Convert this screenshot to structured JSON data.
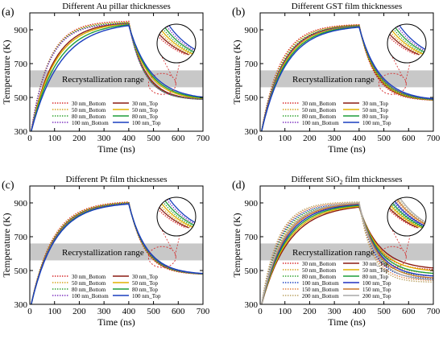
{
  "figure": {
    "panels": [
      "(a)",
      "(b)",
      "(c)",
      "(d)"
    ]
  },
  "chart_data": [
    {
      "panel": "(a)",
      "type": "line",
      "title": "Different Au pillar thicknesses",
      "xlabel": "Time (ns)",
      "ylabel": "Temperature (K)",
      "xlim": [
        0,
        700
      ],
      "ylim": [
        300,
        1000
      ],
      "xticks": [
        0,
        100,
        200,
        300,
        400,
        500,
        600,
        700
      ],
      "yticks": [
        300,
        500,
        700,
        900
      ],
      "band": {
        "label": "Recrystallization range",
        "y": [
          560,
          660
        ]
      },
      "grid": false,
      "legend_placement": "bottom-center",
      "series": [
        {
          "name": "30 nm_Bottom",
          "style": "dotted",
          "color": "#d62728",
          "peak": 950,
          "rise_k": 0.014,
          "end": 485,
          "decay_k": 0.016
        },
        {
          "name": "30 nm_Top",
          "style": "solid",
          "color": "#8c1c13",
          "peak": 940,
          "rise_k": 0.011,
          "end": 485,
          "decay_k": 0.015
        },
        {
          "name": "50 nm_Bottom",
          "style": "dotted",
          "color": "#d4a017",
          "peak": 945,
          "rise_k": 0.014,
          "end": 485,
          "decay_k": 0.016
        },
        {
          "name": "50 nm_Top",
          "style": "solid",
          "color": "#e0b000",
          "peak": 935,
          "rise_k": 0.0105,
          "end": 485,
          "decay_k": 0.013
        },
        {
          "name": "80 nm_Bottom",
          "style": "dotted",
          "color": "#2ca02c",
          "peak": 940,
          "rise_k": 0.014,
          "end": 485,
          "decay_k": 0.016
        },
        {
          "name": "80 nm_Top",
          "style": "solid",
          "color": "#1f9e3a",
          "peak": 930,
          "rise_k": 0.0095,
          "end": 485,
          "decay_k": 0.012
        },
        {
          "name": "100 nm_Bottom",
          "style": "dotted",
          "color": "#7b2fbe",
          "peak": 935,
          "rise_k": 0.014,
          "end": 485,
          "decay_k": 0.016
        },
        {
          "name": "100 nm_Top",
          "style": "solid",
          "color": "#1a3fbf",
          "peak": 925,
          "rise_k": 0.0085,
          "end": 485,
          "decay_k": 0.011
        }
      ]
    },
    {
      "panel": "(b)",
      "type": "line",
      "title": "Different GST film thicknesses",
      "xlabel": "Time (ns)",
      "ylabel": "Temperature (K)",
      "xlim": [
        0,
        700
      ],
      "ylim": [
        300,
        1000
      ],
      "xticks": [
        0,
        100,
        200,
        300,
        400,
        500,
        600,
        700
      ],
      "yticks": [
        300,
        500,
        700,
        900
      ],
      "band": {
        "label": "Recrystallization range",
        "y": [
          560,
          660
        ]
      },
      "grid": false,
      "legend_placement": "bottom-center",
      "series": [
        {
          "name": "30 nm_Bottom",
          "style": "dotted",
          "color": "#d62728",
          "peak": 930,
          "rise_k": 0.013,
          "end": 480,
          "decay_k": 0.016
        },
        {
          "name": "30 nm_Top",
          "style": "solid",
          "color": "#8c1c13",
          "peak": 925,
          "rise_k": 0.0115,
          "end": 480,
          "decay_k": 0.015
        },
        {
          "name": "50 nm_Bottom",
          "style": "dotted",
          "color": "#d4a017",
          "peak": 928,
          "rise_k": 0.0125,
          "end": 480,
          "decay_k": 0.015
        },
        {
          "name": "50 nm_Top",
          "style": "solid",
          "color": "#e0b000",
          "peak": 922,
          "rise_k": 0.011,
          "end": 480,
          "decay_k": 0.014
        },
        {
          "name": "80 nm_Bottom",
          "style": "dotted",
          "color": "#2ca02c",
          "peak": 925,
          "rise_k": 0.012,
          "end": 480,
          "decay_k": 0.014
        },
        {
          "name": "80 nm_Top",
          "style": "solid",
          "color": "#1f9e3a",
          "peak": 918,
          "rise_k": 0.0105,
          "end": 480,
          "decay_k": 0.013
        },
        {
          "name": "100 nm_Bottom",
          "style": "dotted",
          "color": "#7b2fbe",
          "peak": 922,
          "rise_k": 0.0115,
          "end": 480,
          "decay_k": 0.013
        },
        {
          "name": "100 nm_Top",
          "style": "solid",
          "color": "#1a3fbf",
          "peak": 915,
          "rise_k": 0.01,
          "end": 480,
          "decay_k": 0.012
        }
      ]
    },
    {
      "panel": "(c)",
      "type": "line",
      "title": "Different Pt film thicknesses",
      "xlabel": "Time (ns)",
      "ylabel": "Temperature (K)",
      "xlim": [
        0,
        700
      ],
      "ylim": [
        300,
        1000
      ],
      "xticks": [
        0,
        100,
        200,
        300,
        400,
        500,
        600,
        700
      ],
      "yticks": [
        300,
        500,
        700,
        900
      ],
      "band": {
        "label": "Recrystallization range",
        "y": [
          560,
          660
        ]
      },
      "grid": false,
      "legend_placement": "bottom-center",
      "series": [
        {
          "name": "30 nm_Bottom",
          "style": "dotted",
          "color": "#d62728",
          "peak": 905,
          "rise_k": 0.0115,
          "end": 475,
          "decay_k": 0.016
        },
        {
          "name": "30 nm_Top",
          "style": "solid",
          "color": "#8c1c13",
          "peak": 900,
          "rise_k": 0.011,
          "end": 475,
          "decay_k": 0.015
        },
        {
          "name": "50 nm_Bottom",
          "style": "dotted",
          "color": "#d4a017",
          "peak": 903,
          "rise_k": 0.0113,
          "end": 475,
          "decay_k": 0.0155
        },
        {
          "name": "50 nm_Top",
          "style": "solid",
          "color": "#e0b000",
          "peak": 898,
          "rise_k": 0.0108,
          "end": 475,
          "decay_k": 0.0145
        },
        {
          "name": "80 nm_Bottom",
          "style": "dotted",
          "color": "#2ca02c",
          "peak": 900,
          "rise_k": 0.011,
          "end": 475,
          "decay_k": 0.015
        },
        {
          "name": "80 nm_Top",
          "style": "solid",
          "color": "#1f9e3a",
          "peak": 895,
          "rise_k": 0.0105,
          "end": 475,
          "decay_k": 0.014
        },
        {
          "name": "100 nm_Bottom",
          "style": "dotted",
          "color": "#7b2fbe",
          "peak": 898,
          "rise_k": 0.0108,
          "end": 475,
          "decay_k": 0.0145
        },
        {
          "name": "100 nm_Top",
          "style": "solid",
          "color": "#1a3fbf",
          "peak": 893,
          "rise_k": 0.0103,
          "end": 475,
          "decay_k": 0.0135
        }
      ]
    },
    {
      "panel": "(d)",
      "type": "line",
      "title": "Different SiO",
      "title_subscript": "2",
      "title_suffix": " film thicknesses",
      "xlabel": "Time (ns)",
      "ylabel": "Temperature (K)",
      "xlim": [
        0,
        700
      ],
      "ylim": [
        300,
        1000
      ],
      "xticks": [
        0,
        100,
        200,
        300,
        400,
        500,
        600,
        700
      ],
      "yticks": [
        300,
        500,
        700,
        900
      ],
      "band": {
        "label": "Recrystallization range",
        "y": [
          560,
          660
        ]
      },
      "grid": false,
      "legend_placement": "bottom-center",
      "series": [
        {
          "name": "30 nm_Bottom",
          "style": "dotted",
          "color": "#d62728",
          "peak": 880,
          "rise_k": 0.0125,
          "end": 500,
          "decay_k": 0.014
        },
        {
          "name": "30 nm_Top",
          "style": "solid",
          "color": "#8c1c13",
          "peak": 875,
          "rise_k": 0.009,
          "end": 505,
          "decay_k": 0.012
        },
        {
          "name": "50 nm_Bottom",
          "style": "dotted",
          "color": "#d4a017",
          "peak": 885,
          "rise_k": 0.013,
          "end": 480,
          "decay_k": 0.015
        },
        {
          "name": "50 nm_Top",
          "style": "solid",
          "color": "#e0b000",
          "peak": 880,
          "rise_k": 0.0095,
          "end": 490,
          "decay_k": 0.0125
        },
        {
          "name": "80 nm_Bottom",
          "style": "dotted",
          "color": "#2ca02c",
          "peak": 890,
          "rise_k": 0.0135,
          "end": 465,
          "decay_k": 0.016
        },
        {
          "name": "80 nm_Top",
          "style": "solid",
          "color": "#1f9e3a",
          "peak": 885,
          "rise_k": 0.01,
          "end": 475,
          "decay_k": 0.013
        },
        {
          "name": "100 nm_Bottom",
          "style": "dotted",
          "color": "#1a3fbf",
          "peak": 895,
          "rise_k": 0.014,
          "end": 450,
          "decay_k": 0.017
        },
        {
          "name": "100 nm_Top",
          "style": "solid",
          "color": "#2030c0",
          "peak": 890,
          "rise_k": 0.0105,
          "end": 460,
          "decay_k": 0.0135
        },
        {
          "name": "150 nm_Bottom",
          "style": "dotted",
          "color": "#e07b39",
          "peak": 900,
          "rise_k": 0.0145,
          "end": 440,
          "decay_k": 0.018
        },
        {
          "name": "150 nm_Top",
          "style": "solid",
          "color": "#c8782f",
          "peak": 895,
          "rise_k": 0.011,
          "end": 450,
          "decay_k": 0.014
        },
        {
          "name": "200 nm_Bottom",
          "style": "dotted",
          "color": "#b8a060",
          "peak": 905,
          "rise_k": 0.015,
          "end": 430,
          "decay_k": 0.019
        },
        {
          "name": "200 nm_Top",
          "style": "solid",
          "color": "#a9a9a9",
          "peak": 900,
          "rise_k": 0.0115,
          "end": 440,
          "decay_k": 0.015
        }
      ]
    }
  ]
}
